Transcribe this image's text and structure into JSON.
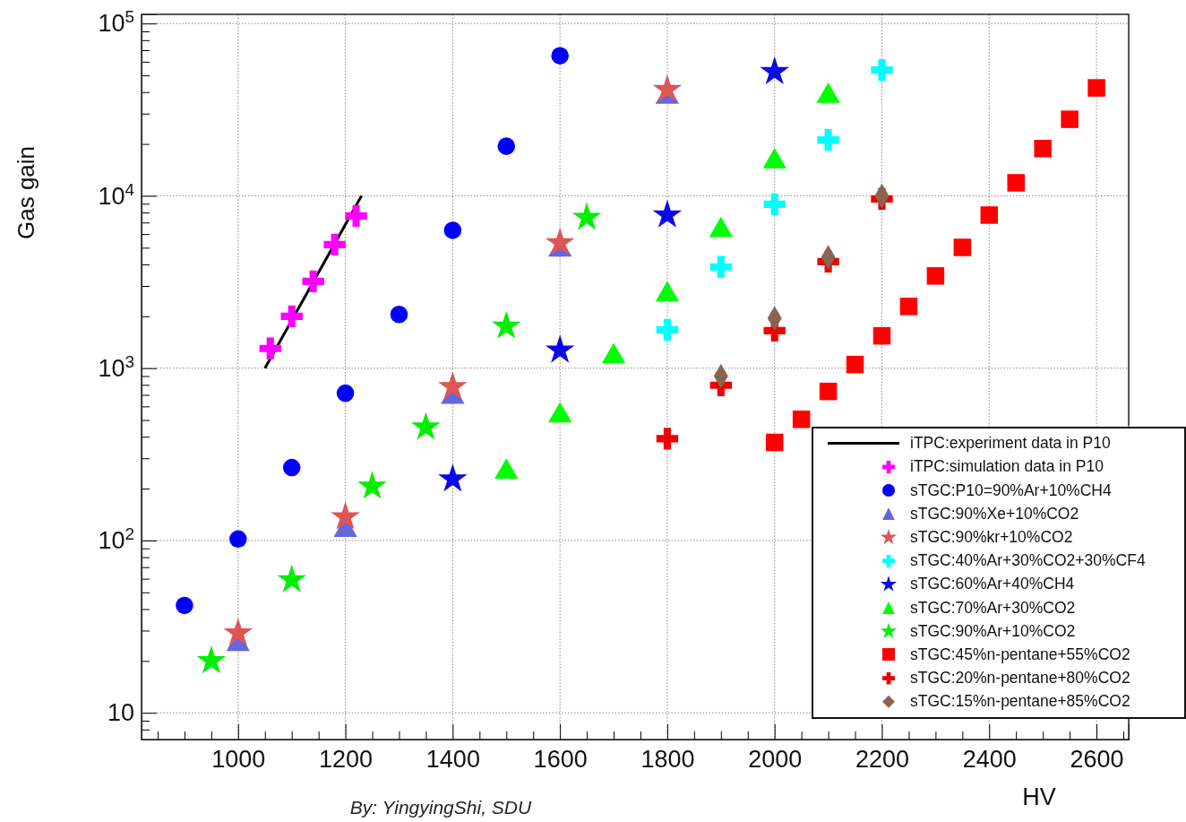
{
  "chart_data": {
    "type": "scatter",
    "xlabel": "HV",
    "ylabel": "Gas gain",
    "annotations": [
      "By: YingyingShi, SDU"
    ],
    "xlim": [
      820,
      2660
    ],
    "ylim": [
      7,
      113000
    ],
    "log": "y",
    "grid": true,
    "legend": "bottom right",
    "xticks": [
      {
        "value": 850,
        "label": null
      },
      {
        "value": 900,
        "label": null
      },
      {
        "value": 950,
        "label": null
      },
      1000,
      {
        "value": 1050,
        "label": null
      },
      {
        "value": 1100,
        "label": null
      },
      {
        "value": 1150,
        "label": null
      },
      1200,
      {
        "value": 1250,
        "label": null
      },
      {
        "value": 1300,
        "label": null
      },
      {
        "value": 1350,
        "label": null
      },
      1400,
      {
        "value": 1450,
        "label": null
      },
      {
        "value": 1500,
        "label": null
      },
      {
        "value": 1550,
        "label": null
      },
      1600,
      {
        "value": 1650,
        "label": null
      },
      {
        "value": 1700,
        "label": null
      },
      {
        "value": 1750,
        "label": null
      },
      1800,
      {
        "value": 1850,
        "label": null
      },
      {
        "value": 1900,
        "label": null
      },
      {
        "value": 1950,
        "label": null
      },
      2000,
      {
        "value": 2050,
        "label": null
      },
      {
        "value": 2100,
        "label": null
      },
      {
        "value": 2150,
        "label": null
      },
      2200,
      {
        "value": 2250,
        "label": null
      },
      {
        "value": 2300,
        "label": null
      },
      {
        "value": 2350,
        "label": null
      },
      2400,
      {
        "value": 2450,
        "label": null
      },
      {
        "value": 2500,
        "label": null
      },
      {
        "value": 2550,
        "label": null
      },
      2600,
      {
        "value": 2650,
        "label": null
      }
    ],
    "yticks": [
      {
        "value": 8,
        "label": null
      },
      {
        "value": 9,
        "label": null
      },
      10,
      {
        "value": 20,
        "label": null
      },
      {
        "value": 30,
        "label": null
      },
      {
        "value": 40,
        "label": null
      },
      {
        "value": 50,
        "label": null
      },
      {
        "value": 60,
        "label": null
      },
      {
        "value": 70,
        "label": null
      },
      {
        "value": 80,
        "label": null
      },
      {
        "value": 90,
        "label": null
      },
      {
        "value": 100,
        "label": "10$^{2}$"
      },
      {
        "value": 200,
        "label": null
      },
      {
        "value": 300,
        "label": null
      },
      {
        "value": 400,
        "label": null
      },
      {
        "value": 500,
        "label": null
      },
      {
        "value": 600,
        "label": null
      },
      {
        "value": 700,
        "label": null
      },
      {
        "value": 800,
        "label": null
      },
      {
        "value": 900,
        "label": null
      },
      {
        "value": 1000,
        "label": "10$^{3}$"
      },
      {
        "value": 2000,
        "label": null
      },
      {
        "value": 3000,
        "label": null
      },
      {
        "value": 4000,
        "label": null
      },
      {
        "value": 5000,
        "label": null
      },
      {
        "value": 6000,
        "label": null
      },
      {
        "value": 7000,
        "label": null
      },
      {
        "value": 8000,
        "label": null
      },
      {
        "value": 9000,
        "label": null
      },
      {
        "value": 10000,
        "label": "10$^{4}$"
      },
      {
        "value": 20000,
        "label": null
      },
      {
        "value": 30000,
        "label": null
      },
      {
        "value": 40000,
        "label": null
      },
      {
        "value": 50000,
        "label": null
      },
      {
        "value": 60000,
        "label": null
      },
      {
        "value": 70000,
        "label": null
      },
      {
        "value": 80000,
        "label": null
      },
      {
        "value": 90000,
        "label": null
      },
      {
        "value": 100000,
        "label": "10$^{5}$"
      }
    ],
    "series": [
      {
        "name": "iTPC:experiment data in P10",
        "type": "line",
        "marker": "none",
        "line_style": "solid",
        "color": "#000000",
        "x": [
          1050,
          1230
        ],
        "values": [
          1000,
          10000
        ]
      },
      {
        "name": "iTPC:simulation data in P10",
        "marker": "cross",
        "color": "#ff00ff",
        "x": [
          1060,
          1100,
          1140,
          1180,
          1220
        ],
        "values": [
          1300,
          2000,
          3190,
          5210,
          7640
        ]
      },
      {
        "name": "sTGC:P10=90%Ar+10%CH4",
        "marker": "circle",
        "color": "#0000ff",
        "x": [
          900,
          1000,
          1100,
          1200,
          1300,
          1400,
          1500,
          1600
        ],
        "values": [
          42,
          102,
          265,
          716,
          2050,
          6310,
          19400,
          65000
        ]
      },
      {
        "name": "sTGC:90%Xe+10%CO2",
        "marker": "triangle",
        "color": "#6666dd",
        "x": [
          1000,
          1200,
          1400,
          1600,
          1800
        ],
        "values": [
          25,
          115,
          680,
          4860,
          37500
        ]
      },
      {
        "name": "sTGC:90%kr+10%CO2",
        "marker": "star",
        "color": "#dd5555",
        "x": [
          1000,
          1200,
          1400,
          1600,
          1800
        ],
        "values": [
          29,
          137,
          780,
          5330,
          41300
        ]
      },
      {
        "name": "sTGC:40%Ar+30%CO2+30%CF4",
        "marker": "cross",
        "color": "#00ffff",
        "x": [
          1800,
          1900,
          2000,
          2100,
          2200
        ],
        "values": [
          1670,
          3870,
          8930,
          21100,
          53700
        ]
      },
      {
        "name": "sTGC:60%Ar+40%CH4",
        "marker": "star",
        "color": "#0a0ae6",
        "x": [
          1400,
          1600,
          1800,
          2000
        ],
        "values": [
          227,
          1270,
          7730,
          52400
        ]
      },
      {
        "name": "sTGC:70%Ar+30%CO2",
        "marker": "triangle",
        "color": "#00ff00",
        "x": [
          1500,
          1600,
          1700,
          1800,
          1900,
          2000,
          2100
        ],
        "values": [
          250,
          530,
          1170,
          2670,
          6310,
          15800,
          37900
        ]
      },
      {
        "name": "sTGC:90%Ar+10%CO2",
        "marker": "star",
        "color": "#00ee00",
        "x": [
          950,
          1100,
          1250,
          1350,
          1500,
          1650
        ],
        "values": [
          20,
          59,
          206,
          454,
          1750,
          7470
        ]
      },
      {
        "name": "sTGC:45%n-pentane+55%CO2",
        "marker": "square",
        "color": "#ff0000",
        "x": [
          2000,
          2050,
          2100,
          2150,
          2200,
          2250,
          2300,
          2350,
          2400,
          2450,
          2500,
          2550,
          2600
        ],
        "values": [
          371,
          505,
          733,
          1050,
          1540,
          2280,
          3430,
          5020,
          7730,
          11900,
          18800,
          27800,
          42300
        ]
      },
      {
        "name": "sTGC:20%n-pentane+80%CO2",
        "marker": "cross",
        "color": "#ee0000",
        "x": [
          1800,
          1900,
          2000,
          2100,
          2200
        ],
        "values": [
          390,
          796,
          1650,
          4150,
          9600
        ]
      },
      {
        "name": "sTGC:15%n-pentane+85%CO2",
        "marker": "diamond",
        "color": "#8b6450",
        "x": [
          1900,
          2000,
          2100,
          2200
        ],
        "values": [
          900,
          1950,
          4400,
          10000
        ]
      }
    ]
  }
}
